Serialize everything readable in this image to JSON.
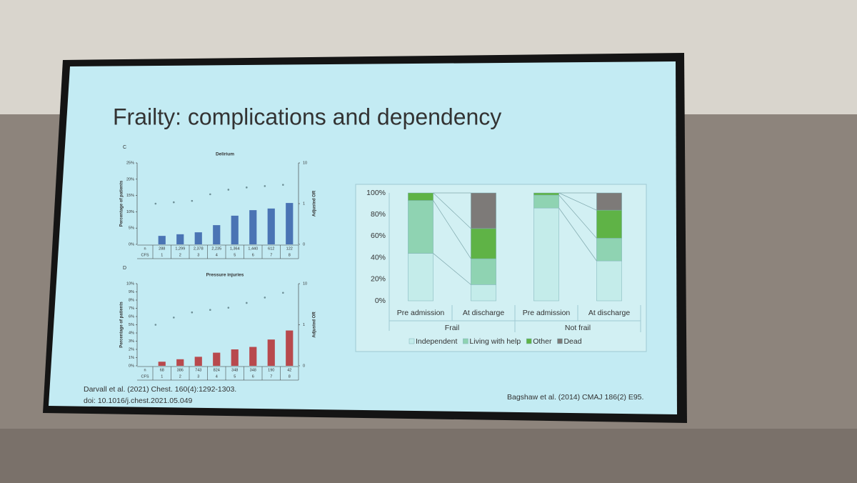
{
  "slide": {
    "title": "Frailty: complications and dependency",
    "citation_left": [
      "Darvall et al. (2021) Chest. 160(4):1292-1303.",
      "doi: 10.1016/j.chest.2021.05.049"
    ],
    "citation_right": "Bagshaw et al. (2014) CMAJ 186(2) E95."
  },
  "chart_data": [
    {
      "type": "bar",
      "panel": "C",
      "title": "Delirium",
      "ylabel": "Percentage of patients",
      "y2label": "Adjusted OR",
      "categories": [
        "1",
        "2",
        "3",
        "4",
        "5",
        "6",
        "7",
        "8"
      ],
      "row_labels": [
        "n",
        "CFS"
      ],
      "n": [
        "288",
        "1,299",
        "2,378",
        "2,235",
        "1,364",
        "1,440",
        "612",
        "122"
      ],
      "series": [
        {
          "color": "#4a74b4",
          "values": [
            2.6,
            3.1,
            3.7,
            5.9,
            8.8,
            10.5,
            11,
            12.7
          ]
        },
        {
          "axis": "y2",
          "color": "#6d8f96",
          "values": [
            1.0,
            1.08,
            1.17,
            1.7,
            2.2,
            2.5,
            2.7,
            2.9
          ]
        }
      ],
      "ylim": [
        0,
        25
      ],
      "yticks": [
        {
          "value": 0,
          "label": "0%"
        },
        {
          "value": 5,
          "label": "5%"
        },
        {
          "value": 10,
          "label": "10%"
        },
        {
          "value": 15,
          "label": "15%"
        },
        {
          "value": 20,
          "label": "20%"
        },
        {
          "value": 25,
          "label": "25%"
        }
      ],
      "y2scale": "log",
      "y2lim": [
        0.1,
        10
      ],
      "y2ticks": [
        {
          "value": 0.1,
          "label": "0"
        },
        1,
        10
      ]
    },
    {
      "type": "bar",
      "panel": "D",
      "title": "Pressure injuries",
      "ylabel": "Percentage of patients",
      "y2label": "Adjusted OR",
      "categories": [
        "1",
        "2",
        "3",
        "4",
        "5",
        "6",
        "7",
        "8"
      ],
      "row_labels": [
        "n",
        "CFS"
      ],
      "n": [
        "68",
        "386",
        "743",
        "824",
        "348",
        "348",
        "190",
        "42"
      ],
      "series": [
        {
          "color": "#b8494d",
          "values": [
            0.5,
            0.8,
            1.1,
            1.6,
            2.0,
            2.3,
            3.2,
            4.3
          ]
        },
        {
          "axis": "y2",
          "color": "#6d8f96",
          "values": [
            1.0,
            1.5,
            2.0,
            2.3,
            2.6,
            3.4,
            4.6,
            6
          ]
        }
      ],
      "ylim": [
        0,
        10
      ],
      "yticks": [
        {
          "value": 0,
          "label": "0%"
        },
        {
          "value": 1,
          "label": "1%"
        },
        {
          "value": 2,
          "label": "2%"
        },
        {
          "value": 3,
          "label": "3%"
        },
        {
          "value": 4,
          "label": "4%"
        },
        {
          "value": 5,
          "label": "5%"
        },
        {
          "value": 6,
          "label": "6%"
        },
        {
          "value": 7,
          "label": "7%"
        },
        {
          "value": 8,
          "label": "8%"
        },
        {
          "value": 9,
          "label": "9%"
        },
        {
          "value": 10,
          "label": "10%"
        }
      ],
      "y2scale": "log",
      "y2lim": [
        0.1,
        10
      ],
      "y2ticks": [
        {
          "value": 0.1,
          "label": "0"
        },
        1,
        10
      ]
    },
    {
      "type": "stacked_bar",
      "categories": [
        "Pre admission",
        "At discharge",
        "Pre admission",
        "At discharge"
      ],
      "groups": [
        "Frail",
        "Not frail"
      ],
      "series": [
        {
          "name": "Independent",
          "color": "#c4ecea",
          "values": [
            44,
            15,
            86,
            37
          ]
        },
        {
          "name": "Living with help",
          "color": "#8fd3b2",
          "values": [
            49,
            24,
            12,
            21
          ]
        },
        {
          "name": "Other",
          "color": "#5fb346",
          "values": [
            7,
            28,
            2,
            26
          ]
        },
        {
          "name": "Dead",
          "color": "#7d7a78",
          "values": [
            0,
            33,
            0,
            16
          ]
        }
      ],
      "ylim": [
        0,
        100
      ],
      "yticks": [
        {
          "value": 0,
          "label": "0%"
        },
        {
          "value": 20,
          "label": "20%"
        },
        {
          "value": 40,
          "label": "40%"
        },
        {
          "value": 60,
          "label": "60%"
        },
        {
          "value": 80,
          "label": "80%"
        },
        {
          "value": 100,
          "label": "100%"
        }
      ]
    }
  ]
}
